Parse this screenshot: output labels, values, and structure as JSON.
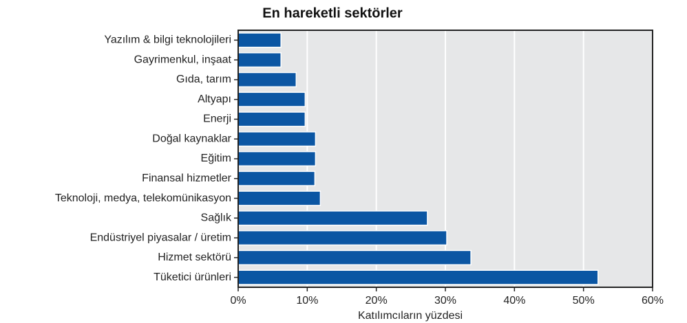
{
  "chart_data": {
    "type": "bar",
    "orientation": "horizontal",
    "title": "En hareketli sektörler",
    "xlabel": "Katılımcıların yüzdesi",
    "categories": [
      "Yazılım & bilgi teknolojileri",
      "Gayrimenkul, inşaat",
      "Gıda, tarım",
      "Altyapı",
      "Enerji",
      "Doğal kaynaklar",
      "Eğitim",
      "Finansal hizmetler",
      "Teknoloji, medya, telekomünikasyon",
      "Sağlık",
      "Endüstriyel piyasalar / üretim",
      "Hizmet sektörü",
      "Tüketici ürünleri"
    ],
    "values": [
      6.2,
      6.2,
      8.4,
      9.7,
      9.7,
      11.2,
      11.2,
      11.1,
      11.9,
      27.4,
      30.2,
      33.7,
      52.1
    ],
    "color": "#0b56a3",
    "xlim": [
      0,
      60
    ],
    "xticks": [
      {
        "value": 0,
        "label": "0%"
      },
      {
        "value": 10,
        "label": "10%"
      },
      {
        "value": 20,
        "label": "20%"
      },
      {
        "value": 30,
        "label": "30%"
      },
      {
        "value": 40,
        "label": "40%"
      },
      {
        "value": 50,
        "label": "50%"
      },
      {
        "value": 60,
        "label": "60%"
      }
    ],
    "grid": true
  }
}
